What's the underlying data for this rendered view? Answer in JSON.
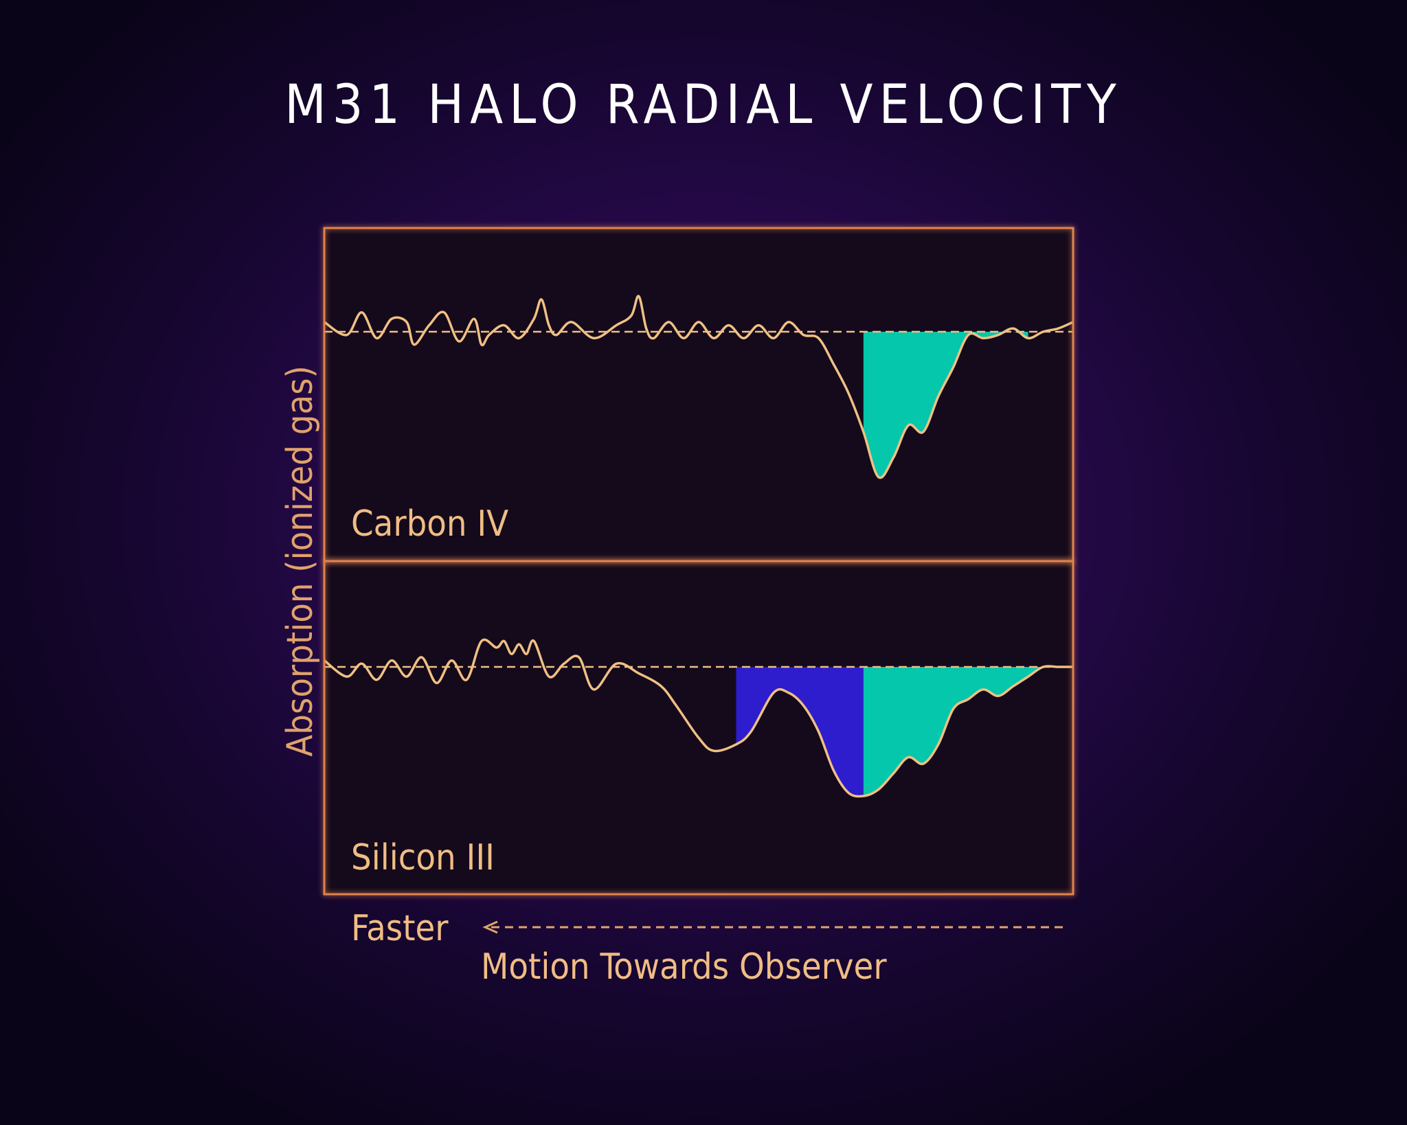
{
  "colors": {
    "background": "#26094a",
    "panel": "#150a1c",
    "frame": "#e0844e",
    "spectrum_line": "#f0c083",
    "fill_teal": "#04c7ac",
    "fill_blue": "#2d1dcc"
  },
  "chart_data": {
    "type": "area",
    "title": "M31 HALO RADIAL VELOCITY",
    "ylabel": "Absorption (ionized gas)",
    "xlabel": {
      "faster": "Faster",
      "arrow": "<---------------------------------------------",
      "motion": "Motion Towards Observer"
    },
    "panels": [
      {
        "name": "Carbon IV",
        "baseline": 0,
        "x": [
          0,
          3,
          5,
          7,
          9,
          11,
          12,
          14,
          16,
          18,
          20,
          21,
          22,
          24,
          26,
          28,
          29,
          30,
          31,
          33,
          36,
          39,
          41,
          42,
          43,
          44,
          46,
          48,
          50,
          52,
          54,
          56,
          58,
          60,
          62,
          64,
          66,
          68,
          70,
          72,
          74,
          76,
          78,
          80,
          82,
          84,
          86,
          88,
          90,
          92,
          94,
          96,
          98,
          100
        ],
        "y": [
          0.3,
          -0.1,
          0.6,
          -0.2,
          0.4,
          0.3,
          -0.4,
          0.2,
          0.6,
          -0.3,
          0.4,
          -0.4,
          -0.1,
          0.2,
          -0.2,
          0.4,
          1.0,
          0.2,
          -0.1,
          0.3,
          -0.2,
          0.2,
          0.5,
          1.1,
          0.1,
          -0.2,
          0.3,
          -0.2,
          0.3,
          -0.2,
          0.2,
          -0.2,
          0.2,
          -0.2,
          0.3,
          -0.1,
          -0.2,
          -1.0,
          -1.9,
          -3.1,
          -4.5,
          -3.9,
          -2.9,
          -3.1,
          -2.0,
          -1.1,
          -0.1,
          -0.2,
          -0.1,
          0.1,
          -0.2,
          0,
          0.1,
          0.3
        ],
        "highlights": [
          {
            "x_from": 72,
            "x_to": 95,
            "color": "teal"
          }
        ]
      },
      {
        "name": "Silicon III",
        "baseline": 0,
        "x": [
          0,
          3,
          5,
          7,
          9,
          11,
          13,
          15,
          17,
          19,
          21,
          23,
          24,
          25,
          26,
          27,
          28,
          30,
          32,
          34,
          36,
          39,
          42,
          45,
          47,
          50,
          52,
          55,
          57,
          60,
          62,
          64,
          66,
          68,
          70,
          72,
          74,
          76,
          78,
          80,
          82,
          84,
          86,
          88,
          90,
          92,
          94,
          96,
          98,
          100
        ],
        "y": [
          0.2,
          -0.3,
          0.1,
          -0.4,
          0.2,
          -0.3,
          0.3,
          -0.5,
          0.2,
          -0.4,
          0.8,
          0.6,
          0.8,
          0.4,
          0.7,
          0.4,
          0.8,
          -0.3,
          0.1,
          0.3,
          -0.7,
          0.1,
          -0.2,
          -0.6,
          -1.2,
          -2.2,
          -2.6,
          -2.4,
          -2.0,
          -0.8,
          -0.8,
          -1.2,
          -2.0,
          -3.2,
          -3.9,
          -4.0,
          -3.8,
          -3.3,
          -2.8,
          -3.0,
          -2.4,
          -1.3,
          -1.0,
          -0.7,
          -0.9,
          -0.6,
          -0.3,
          0,
          0,
          0
        ],
        "highlights": [
          {
            "x_from": 54,
            "x_to": 72,
            "color": "blue"
          },
          {
            "x_from": 72,
            "x_to": 100,
            "color": "teal"
          }
        ]
      }
    ],
    "grid": false,
    "legend": "none"
  }
}
